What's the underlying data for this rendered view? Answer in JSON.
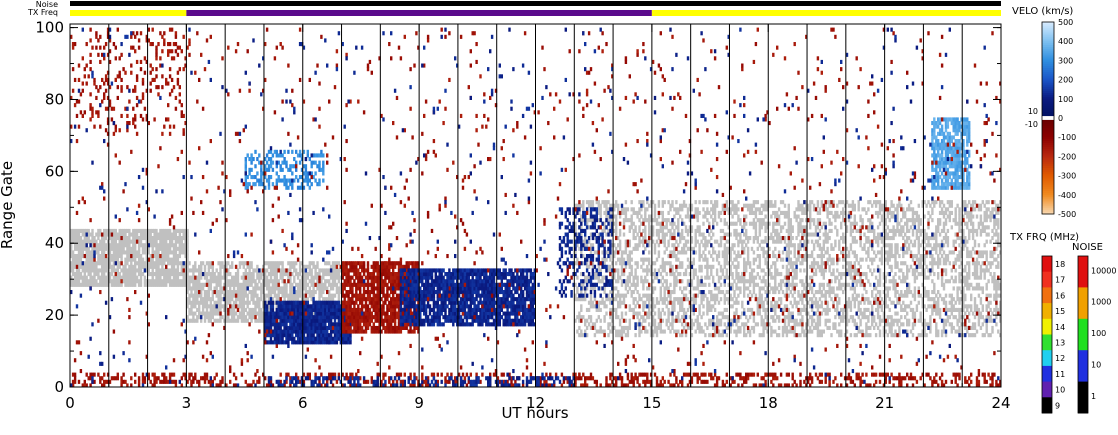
{
  "chart_data": {
    "type": "heatmap",
    "xlabel": "UT hours",
    "ylabel": "Range Gate",
    "xlim": [
      0,
      24
    ],
    "ylim": [
      0,
      101
    ],
    "x_ticks": [
      "0",
      "3",
      "6",
      "9",
      "12",
      "15",
      "18",
      "21",
      "24"
    ],
    "y_ticks": [
      "0",
      "20",
      "40",
      "60",
      "80",
      "100"
    ],
    "minor_x_every_hours": 1,
    "noise_bar_label": "Noise",
    "txfreq_bar_label": "TX Freq",
    "txfreq_segments": [
      {
        "start": 0,
        "end": 3,
        "color": "#ffff00"
      },
      {
        "start": 3,
        "end": 15,
        "color": "#5a0a8c"
      },
      {
        "start": 15,
        "end": 24,
        "color": "#ffff00"
      }
    ],
    "scan_boundaries_hours": [
      1,
      2,
      3,
      4,
      5,
      6,
      7,
      8,
      9,
      10,
      11,
      12,
      13,
      14,
      15,
      16,
      17,
      18,
      19,
      20,
      21,
      22,
      23
    ],
    "ground_scatter_color": "#c0c0c0",
    "blobs": [
      {
        "kind": "ground",
        "t0": 0,
        "t1": 3,
        "g0": 28,
        "g1": 44,
        "density": 0.85
      },
      {
        "kind": "ground",
        "t0": 3,
        "t1": 7,
        "g0": 18,
        "g1": 35,
        "density": 0.75
      },
      {
        "kind": "ground",
        "t0": 13,
        "t1": 24,
        "g0": 14,
        "g1": 52,
        "density": 0.45
      },
      {
        "kind": "velo",
        "value": 120,
        "t0": 5,
        "t1": 7.2,
        "g0": 12,
        "g1": 24,
        "density": 0.95
      },
      {
        "kind": "velo",
        "value": -150,
        "t0": 7,
        "t1": 9,
        "g0": 15,
        "g1": 35,
        "density": 0.85
      },
      {
        "kind": "velo",
        "value": 120,
        "t0": 8.5,
        "t1": 12,
        "g0": 17,
        "g1": 33,
        "density": 0.85
      },
      {
        "kind": "velo",
        "value": -150,
        "t0": 0,
        "t1": 3,
        "g0": 70,
        "g1": 100,
        "density": 0.12
      },
      {
        "kind": "velo",
        "value": -150,
        "t0": 0,
        "t1": 24,
        "g0": 0,
        "g1": 4,
        "density": 0.35
      },
      {
        "kind": "velo",
        "value": 120,
        "t0": 5,
        "t1": 13,
        "g0": 0,
        "g1": 3,
        "density": 0.35
      },
      {
        "kind": "velo",
        "value": 350,
        "t0": 22.2,
        "t1": 23.2,
        "g0": 55,
        "g1": 75,
        "density": 0.8
      },
      {
        "kind": "velo",
        "value": 300,
        "t0": 4.5,
        "t1": 6.5,
        "g0": 55,
        "g1": 66,
        "density": 0.4
      },
      {
        "kind": "velo",
        "value": 120,
        "t0": 12.6,
        "t1": 14,
        "g0": 25,
        "g1": 50,
        "density": 0.35
      },
      {
        "kind": "velo",
        "value": -150,
        "t0": 0,
        "t1": 24,
        "g0": 0,
        "g1": 100,
        "density": 0.02
      },
      {
        "kind": "velo",
        "value": 120,
        "t0": 0,
        "t1": 24,
        "g0": 0,
        "g1": 100,
        "density": 0.012
      }
    ]
  },
  "velo_colorbar": {
    "title": "VELO (km/s)",
    "min": -500,
    "max": 500,
    "labels": [
      "500",
      "400",
      "300",
      "200",
      "100",
      "0",
      "10",
      "-10",
      "-100",
      "-200",
      "-300",
      "-400",
      "-500"
    ],
    "stops": [
      {
        "v": 500,
        "color": "#d8ecff"
      },
      {
        "v": 400,
        "color": "#7ec0f0"
      },
      {
        "v": 300,
        "color": "#2f8fe0"
      },
      {
        "v": 200,
        "color": "#1a55c8"
      },
      {
        "v": 100,
        "color": "#0a1a80"
      },
      {
        "v": 0,
        "color": "#001060"
      },
      {
        "v": -10,
        "color": "#6a0000"
      },
      {
        "v": -100,
        "color": "#8b0000"
      },
      {
        "v": -200,
        "color": "#b82810"
      },
      {
        "v": -300,
        "color": "#e05a00"
      },
      {
        "v": -400,
        "color": "#f08a20"
      },
      {
        "v": -500,
        "color": "#f8d8b0"
      }
    ]
  },
  "txfrq_colorbar": {
    "title": "TX FRQ (MHz)",
    "labels": [
      "18",
      "17",
      "16",
      "15",
      "14",
      "13",
      "12",
      "11",
      "10",
      "9"
    ],
    "colors": [
      "#e01010",
      "#f03020",
      "#f07010",
      "#f0b000",
      "#f0f000",
      "#30e030",
      "#20d0f0",
      "#2030e0",
      "#6020b0",
      "#000000"
    ]
  },
  "noise_colorbar": {
    "title": "NOISE",
    "labels": [
      "10000",
      "1000",
      "100",
      "10",
      "1"
    ],
    "colors": [
      "#e01010",
      "#f0a000",
      "#20e020",
      "#2030e0",
      "#000000"
    ]
  }
}
